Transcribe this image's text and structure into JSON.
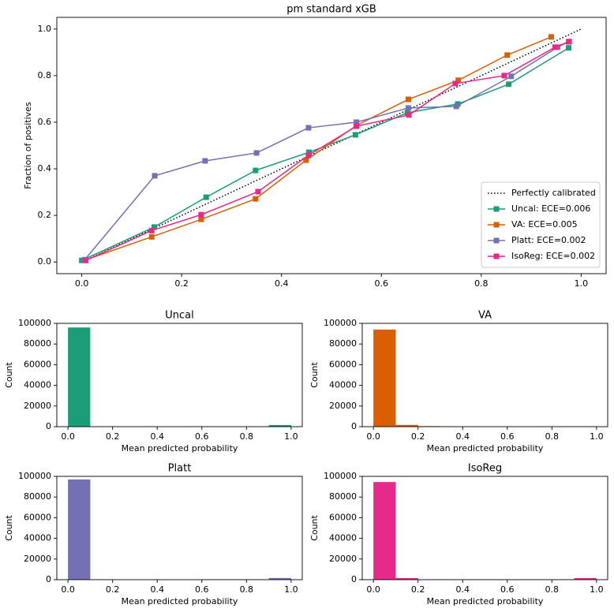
{
  "chart_data": [
    {
      "type": "line",
      "title": "pm standard xGB",
      "ylabel": "Fraction of positives",
      "xlim": [
        -0.05,
        1.05
      ],
      "ylim": [
        -0.05,
        1.05
      ],
      "xticks": [
        {
          "value": 0,
          "label": "0.0"
        },
        0.2,
        0.4,
        0.6,
        0.8,
        {
          "value": 1,
          "label": "1.0"
        }
      ],
      "yticks": [
        {
          "value": 0,
          "label": "0.0"
        },
        0.2,
        0.4,
        0.6,
        0.8,
        {
          "value": 1,
          "label": "1.0"
        }
      ],
      "legend": "lower right",
      "series": [
        {
          "name": "Perfectly calibrated",
          "color": "#000000",
          "dash": "dotted",
          "x": [
            0,
            1
          ],
          "values": [
            0,
            1
          ]
        },
        {
          "name": "Uncal: ECE=0.006",
          "color": "#1b9e77",
          "marker": "square",
          "x": [
            0.0,
            0.145,
            0.249,
            0.348,
            0.455,
            0.548,
            0.652,
            0.753,
            0.855,
            0.975
          ],
          "values": [
            0.007,
            0.15,
            0.278,
            0.393,
            0.471,
            0.546,
            0.641,
            0.678,
            0.763,
            0.919
          ]
        },
        {
          "name": "VA: ECE=0.005",
          "color": "#d95f02",
          "marker": "square",
          "x": [
            0.005,
            0.14,
            0.239,
            0.348,
            0.449,
            0.55,
            0.654,
            0.754,
            0.852,
            0.94
          ],
          "values": [
            0.007,
            0.108,
            0.183,
            0.271,
            0.437,
            0.586,
            0.698,
            0.78,
            0.888,
            0.966
          ]
        },
        {
          "name": "Platt: ECE=0.002",
          "color": "#7570b3",
          "marker": "square",
          "x": [
            0.006,
            0.146,
            0.247,
            0.35,
            0.454,
            0.55,
            0.654,
            0.75,
            0.86,
            0.953,
            0.975
          ],
          "values": [
            0.01,
            0.37,
            0.434,
            0.468,
            0.576,
            0.6,
            0.661,
            0.668,
            0.797,
            0.922,
            0.945
          ]
        },
        {
          "name": "IsoReg: ECE=0.002",
          "color": "#e7298a",
          "marker": "square",
          "x": [
            0.008,
            0.14,
            0.239,
            0.353,
            0.454,
            0.55,
            0.655,
            0.748,
            0.846,
            0.948,
            0.976
          ],
          "values": [
            0.007,
            0.135,
            0.203,
            0.302,
            0.458,
            0.583,
            0.631,
            0.766,
            0.8,
            0.922,
            0.946
          ]
        }
      ]
    },
    {
      "type": "histogram",
      "title": "Uncal",
      "xlabel": "Mean predicted probability",
      "ylabel": "Count",
      "color": "#1b9e77",
      "bins": [
        0,
        0.1,
        0.2,
        0.3,
        0.4,
        0.5,
        0.6,
        0.7,
        0.8,
        0.9,
        1
      ],
      "values": [
        96000,
        0,
        0,
        0,
        0,
        0,
        0,
        0,
        0,
        1600
      ],
      "xlim": [
        -0.05,
        1.05
      ],
      "ylim": [
        0,
        100000
      ],
      "xticks": [
        {
          "value": 0,
          "label": "0.0"
        },
        0.2,
        0.4,
        0.6,
        0.8,
        {
          "value": 1,
          "label": "1.0"
        }
      ],
      "yticks": [
        0,
        20000,
        40000,
        60000,
        80000,
        100000
      ]
    },
    {
      "type": "histogram",
      "title": "VA",
      "xlabel": "Mean predicted probability",
      "ylabel": "Count",
      "color": "#d95f02",
      "bins": [
        0,
        0.1,
        0.2,
        0.3,
        0.4,
        0.5,
        0.6,
        0.7,
        0.8,
        0.9,
        1
      ],
      "values": [
        94000,
        1700,
        500,
        0,
        0,
        0,
        0,
        0,
        300,
        300
      ],
      "xlim": [
        -0.05,
        1.05
      ],
      "ylim": [
        0,
        100000
      ],
      "xticks": [
        {
          "value": 0,
          "label": "0.0"
        },
        0.2,
        0.4,
        0.6,
        0.8,
        {
          "value": 1,
          "label": "1.0"
        }
      ],
      "yticks": [
        0,
        20000,
        40000,
        60000,
        80000,
        100000
      ]
    },
    {
      "type": "histogram",
      "title": "Platt",
      "xlabel": "Mean predicted probability",
      "ylabel": "Count",
      "color": "#7570b3",
      "bins": [
        0,
        0.1,
        0.2,
        0.3,
        0.4,
        0.5,
        0.6,
        0.7,
        0.8,
        0.9,
        1
      ],
      "values": [
        97000,
        300,
        0,
        0,
        0,
        0,
        200,
        200,
        200,
        1600
      ],
      "xlim": [
        -0.05,
        1.05
      ],
      "ylim": [
        0,
        100000
      ],
      "xticks": [
        {
          "value": 0,
          "label": "0.0"
        },
        0.2,
        0.4,
        0.6,
        0.8,
        {
          "value": 1,
          "label": "1.0"
        }
      ],
      "yticks": [
        0,
        20000,
        40000,
        60000,
        80000,
        100000
      ]
    },
    {
      "type": "histogram",
      "title": "IsoReg",
      "xlabel": "Mean predicted probability",
      "ylabel": "Count",
      "color": "#e7298a",
      "bins": [
        0,
        0.1,
        0.2,
        0.3,
        0.4,
        0.5,
        0.6,
        0.7,
        0.8,
        0.9,
        1
      ],
      "values": [
        94500,
        1500,
        300,
        200,
        200,
        200,
        200,
        200,
        200,
        1500
      ],
      "xlim": [
        -0.05,
        1.05
      ],
      "ylim": [
        0,
        100000
      ],
      "xticks": [
        {
          "value": 0,
          "label": "0.0"
        },
        0.2,
        0.4,
        0.6,
        0.8,
        {
          "value": 1,
          "label": "1.0"
        }
      ],
      "yticks": [
        0,
        20000,
        40000,
        60000,
        80000,
        100000
      ]
    }
  ]
}
